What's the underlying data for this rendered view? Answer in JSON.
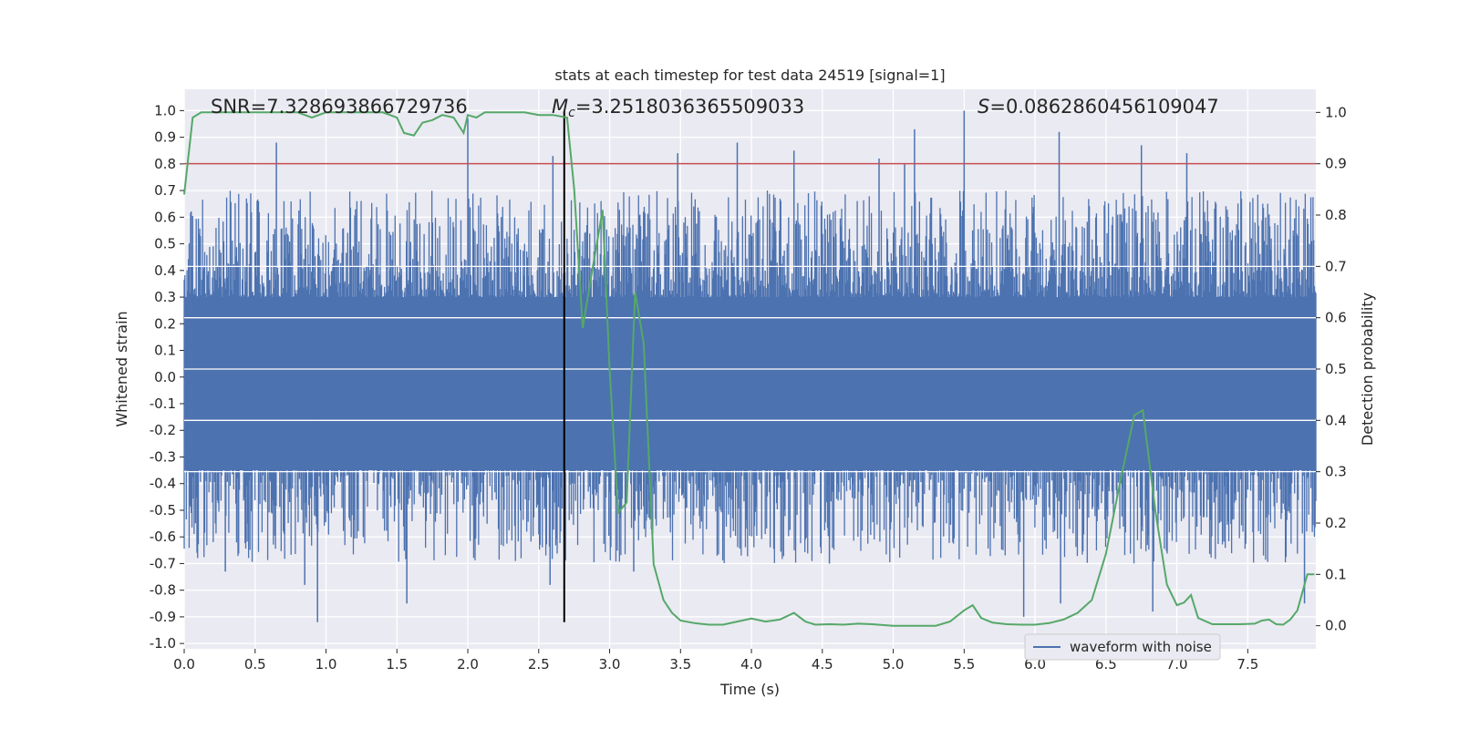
{
  "chart_data": {
    "type": "line",
    "title": "stats at each timestep for test data 24519 [signal=1]",
    "xlabel": "Time (s)",
    "ylabel": "Whitened strain",
    "y2label": "Detection probability",
    "xlim": [
      0.0,
      7.98
    ],
    "ylim": [
      -1.02,
      1.08
    ],
    "y2lim": [
      -0.045,
      1.045
    ],
    "xticks": [
      "0.0",
      "0.5",
      "1.0",
      "1.5",
      "2.0",
      "2.5",
      "3.0",
      "3.5",
      "4.0",
      "4.5",
      "5.0",
      "5.5",
      "6.0",
      "6.5",
      "7.0",
      "7.5"
    ],
    "yticks": [
      "1.0",
      "0.9",
      "0.8",
      "0.7",
      "0.6",
      "0.5",
      "0.4",
      "0.3",
      "0.2",
      "0.1",
      "0.0",
      "-0.1",
      "-0.2",
      "-0.3",
      "-0.4",
      "-0.5",
      "-0.6",
      "-0.7",
      "-0.8",
      "-0.9",
      "-1.0"
    ],
    "y2ticks": [
      "1.0",
      "0.9",
      "0.8",
      "0.7",
      "0.6",
      "0.5",
      "0.4",
      "0.3",
      "0.2",
      "0.1",
      "0.0"
    ],
    "annotations": {
      "snr": "SNR=7.328693866729736",
      "mc_symbol": "M",
      "mc_subscript": "c",
      "mc_value": "=3.2518036365509033",
      "s_symbol": "S",
      "s_value": "=0.0862860456109047"
    },
    "legend": {
      "label": "waveform with noise",
      "location": "lower-right"
    },
    "threshold": {
      "value_right_axis": 0.9,
      "color": "#c44e52"
    },
    "merger_time": 2.68,
    "merger_line_range": [
      -0.92,
      1.0
    ],
    "waveform": {
      "name": "waveform with noise",
      "color": "#4c72b0",
      "duration_s": 7.98,
      "typical_envelope": [
        -0.3,
        0.3
      ],
      "spikes": [
        {
          "t": 0.65,
          "y": 0.88
        },
        {
          "t": 0.94,
          "y": -0.92
        },
        {
          "t": 2.0,
          "y": 0.97
        },
        {
          "t": 2.6,
          "y": 0.83
        },
        {
          "t": 2.58,
          "y": -0.78
        },
        {
          "t": 0.85,
          "y": -0.78
        },
        {
          "t": 1.57,
          "y": -0.85
        },
        {
          "t": 3.48,
          "y": 0.84
        },
        {
          "t": 3.9,
          "y": 0.88
        },
        {
          "t": 4.3,
          "y": 0.85
        },
        {
          "t": 4.9,
          "y": 0.82
        },
        {
          "t": 5.15,
          "y": 0.93
        },
        {
          "t": 5.5,
          "y": 1.0
        },
        {
          "t": 5.92,
          "y": -0.9
        },
        {
          "t": 6.17,
          "y": 0.92
        },
        {
          "t": 6.18,
          "y": -0.85
        },
        {
          "t": 6.75,
          "y": 0.87
        },
        {
          "t": 6.83,
          "y": -0.88
        },
        {
          "t": 7.07,
          "y": 0.84
        },
        {
          "t": 7.9,
          "y": -0.85
        },
        {
          "t": 3.17,
          "y": -0.73
        },
        {
          "t": 4.55,
          "y": -0.7
        },
        {
          "t": 0.29,
          "y": -0.73
        },
        {
          "t": 5.08,
          "y": 0.8
        }
      ]
    },
    "detection_probability": {
      "name": "detection probability",
      "color": "#55a868",
      "x": [
        0.0,
        0.06,
        0.12,
        0.2,
        0.3,
        0.4,
        0.5,
        0.6,
        0.7,
        0.8,
        0.9,
        1.0,
        1.1,
        1.2,
        1.3,
        1.4,
        1.5,
        1.55,
        1.62,
        1.68,
        1.75,
        1.82,
        1.9,
        1.97,
        2.0,
        2.06,
        2.12,
        2.2,
        2.3,
        2.4,
        2.5,
        2.6,
        2.7,
        2.75,
        2.81,
        2.87,
        2.95,
        3.0,
        3.06,
        3.12,
        3.18,
        3.24,
        3.31,
        3.38,
        3.44,
        3.5,
        3.6,
        3.7,
        3.8,
        3.9,
        4.0,
        4.1,
        4.2,
        4.3,
        4.38,
        4.45,
        4.55,
        4.65,
        4.75,
        4.85,
        5.0,
        5.15,
        5.3,
        5.4,
        5.5,
        5.56,
        5.62,
        5.7,
        5.8,
        5.9,
        6.0,
        6.1,
        6.2,
        6.3,
        6.4,
        6.5,
        6.6,
        6.7,
        6.76,
        6.85,
        6.93,
        7.0,
        7.05,
        7.1,
        7.15,
        7.25,
        7.35,
        7.45,
        7.55,
        7.6,
        7.65,
        7.7,
        7.75,
        7.8,
        7.85,
        7.92,
        7.97
      ],
      "y": [
        0.84,
        0.99,
        1.0,
        1.0,
        1.0,
        1.0,
        1.0,
        1.0,
        1.0,
        1.0,
        0.99,
        1.0,
        1.0,
        1.0,
        1.0,
        1.0,
        0.99,
        0.96,
        0.955,
        0.98,
        0.985,
        0.995,
        0.99,
        0.96,
        0.995,
        0.99,
        1.0,
        1.0,
        1.0,
        1.0,
        0.995,
        0.995,
        0.99,
        0.85,
        0.58,
        0.68,
        0.81,
        0.5,
        0.22,
        0.24,
        0.65,
        0.55,
        0.12,
        0.05,
        0.025,
        0.01,
        0.005,
        0.002,
        0.002,
        0.008,
        0.014,
        0.008,
        0.012,
        0.025,
        0.008,
        0.002,
        0.003,
        0.002,
        0.004,
        0.003,
        0.0,
        0.0,
        0.0,
        0.008,
        0.03,
        0.04,
        0.015,
        0.006,
        0.003,
        0.002,
        0.002,
        0.005,
        0.012,
        0.025,
        0.05,
        0.14,
        0.28,
        0.41,
        0.42,
        0.22,
        0.08,
        0.04,
        0.045,
        0.06,
        0.015,
        0.003,
        0.003,
        0.003,
        0.004,
        0.01,
        0.012,
        0.003,
        0.002,
        0.012,
        0.03,
        0.1,
        0.1
      ]
    }
  }
}
